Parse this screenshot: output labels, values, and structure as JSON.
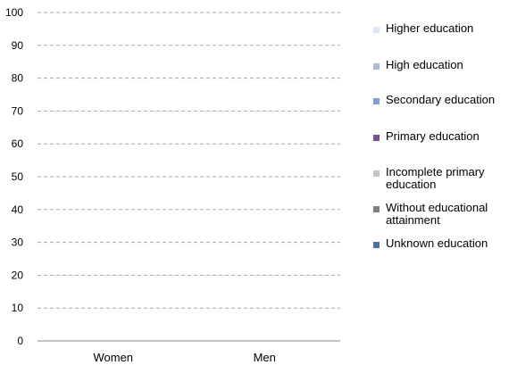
{
  "chart_data": {
    "type": "bar",
    "stacked": true,
    "categories": [
      "Women",
      "Men"
    ],
    "y_ticks": [
      "0",
      "10",
      "20",
      "30",
      "40",
      "50",
      "60",
      "70",
      "80",
      "90",
      "100"
    ],
    "ylim": [
      0,
      100
    ],
    "grid": true,
    "legend_position": "right",
    "series": [
      {
        "name": "Higher education",
        "color": "#dde6f7",
        "values": [
          0,
          0
        ]
      },
      {
        "name": "High education",
        "color": "#aab9d6",
        "values": [
          0,
          0
        ]
      },
      {
        "name": "Secondary education",
        "color": "#7f9fc8",
        "values": [
          0,
          0
        ]
      },
      {
        "name": "Primary education",
        "color": "#7b4f8c",
        "values": [
          0,
          0
        ]
      },
      {
        "name": "Incomplete primary education",
        "color": "#c4c4c4",
        "values": [
          0,
          0
        ]
      },
      {
        "name": "Without educational attainment",
        "color": "#808080",
        "values": [
          0,
          0
        ]
      },
      {
        "name": "Unknown education",
        "color": "#4d6e9c",
        "values": [
          0,
          0
        ]
      }
    ]
  }
}
